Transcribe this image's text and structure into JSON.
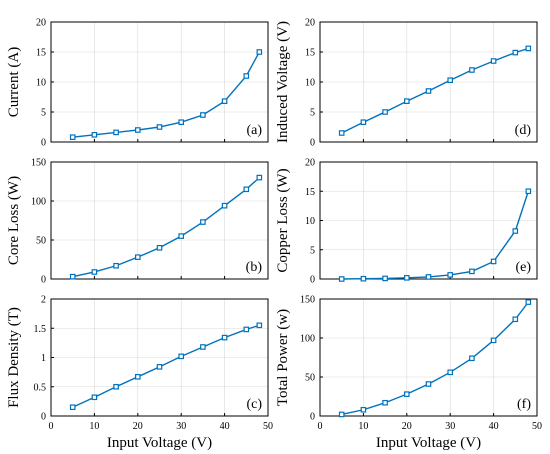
{
  "colors": {
    "series": "#0072BD",
    "axis": "#000000",
    "grid": "#d9d9d9"
  },
  "chart_data": [
    {
      "type": "line",
      "panel": "(a)",
      "ylabel": "Current (A)",
      "xlabel": "",
      "xlim": [
        0,
        50
      ],
      "ylim": [
        0,
        20
      ],
      "xticks": [
        "",
        "",
        "",
        "",
        "",
        ""
      ],
      "yticks": [
        0,
        5,
        10,
        15,
        20
      ],
      "grid": true,
      "x": [
        5,
        10,
        15,
        20,
        25,
        30,
        35,
        40,
        45,
        48
      ],
      "y": [
        0.8,
        1.2,
        1.6,
        2.0,
        2.5,
        3.3,
        4.5,
        6.8,
        11.0,
        15.0
      ]
    },
    {
      "type": "line",
      "panel": "(d)",
      "ylabel": "Induced Voltage (V)",
      "xlabel": "",
      "xlim": [
        0,
        50
      ],
      "ylim": [
        0,
        20
      ],
      "xticks": [
        "",
        "",
        "",
        "",
        "",
        ""
      ],
      "yticks": [
        0,
        5,
        10,
        15,
        20
      ],
      "grid": true,
      "x": [
        5,
        10,
        15,
        20,
        25,
        30,
        35,
        40,
        45,
        48
      ],
      "y": [
        1.5,
        3.3,
        5.0,
        6.8,
        8.5,
        10.3,
        12.0,
        13.5,
        14.9,
        15.6
      ]
    },
    {
      "type": "line",
      "panel": "(b)",
      "ylabel": "Core Loss (W)",
      "xlabel": "",
      "xlim": [
        0,
        50
      ],
      "ylim": [
        0,
        150
      ],
      "xticks": [
        "",
        "",
        "",
        "",
        "",
        ""
      ],
      "yticks": [
        0,
        50,
        100,
        150
      ],
      "grid": true,
      "x": [
        5,
        10,
        15,
        20,
        25,
        30,
        35,
        40,
        45,
        48
      ],
      "y": [
        3,
        9,
        17,
        28,
        40,
        55,
        73,
        94,
        115,
        130
      ]
    },
    {
      "type": "line",
      "panel": "(e)",
      "ylabel": "Copper Loss (W)",
      "xlabel": "",
      "xlim": [
        0,
        50
      ],
      "ylim": [
        0,
        20
      ],
      "xticks": [
        "",
        "",
        "",
        "",
        "",
        ""
      ],
      "yticks": [
        0,
        5,
        10,
        15,
        20
      ],
      "grid": true,
      "x": [
        5,
        10,
        15,
        20,
        25,
        30,
        35,
        40,
        45,
        48
      ],
      "y": [
        0.0,
        0.05,
        0.1,
        0.2,
        0.35,
        0.7,
        1.3,
        3.0,
        8.2,
        15.0
      ]
    },
    {
      "type": "line",
      "panel": "(c)",
      "ylabel": "Flux Density (T)",
      "xlabel": "Input Voltage (V)",
      "xlim": [
        0,
        50
      ],
      "ylim": [
        0,
        2
      ],
      "xticks": [
        0,
        10,
        20,
        30,
        40,
        50
      ],
      "yticks": [
        0,
        0.5,
        1,
        1.5,
        2
      ],
      "grid": true,
      "x": [
        5,
        10,
        15,
        20,
        25,
        30,
        35,
        40,
        45,
        48
      ],
      "y": [
        0.15,
        0.32,
        0.5,
        0.67,
        0.84,
        1.02,
        1.18,
        1.34,
        1.48,
        1.55
      ]
    },
    {
      "type": "line",
      "panel": "(f)",
      "ylabel": "Total Power (w)",
      "xlabel": "Input Voltage (V)",
      "xlim": [
        0,
        50
      ],
      "ylim": [
        0,
        150
      ],
      "xticks": [
        0,
        10,
        20,
        30,
        40,
        50
      ],
      "yticks": [
        0,
        50,
        100,
        150
      ],
      "grid": true,
      "x": [
        5,
        10,
        15,
        20,
        25,
        30,
        35,
        40,
        45,
        48
      ],
      "y": [
        2,
        8,
        17,
        28,
        41,
        56,
        74,
        97,
        124,
        146
      ]
    }
  ]
}
